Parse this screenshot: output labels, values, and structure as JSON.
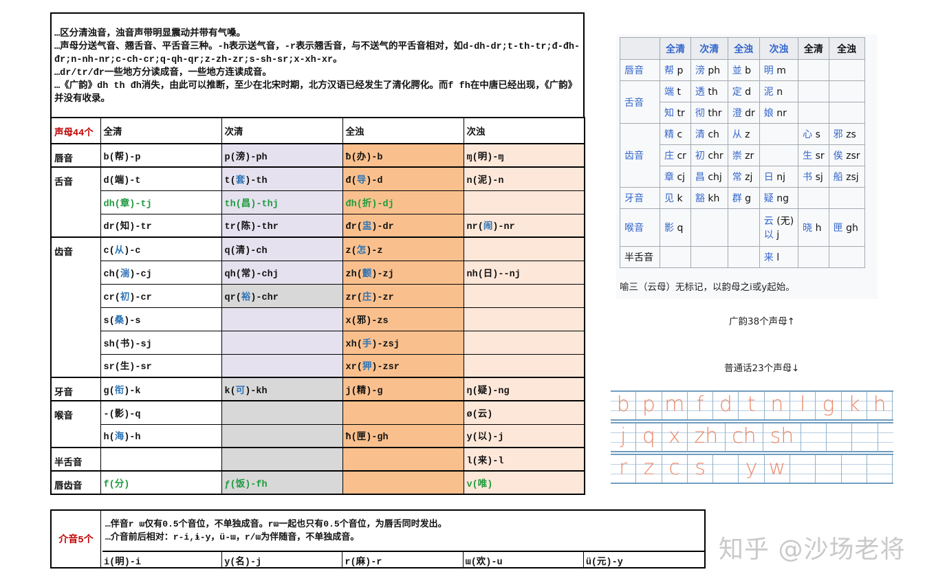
{
  "notes": [
    "…区分清浊音，浊音声带明显震动并带有气嗓。",
    "…声母分送气音、翘舌音、平舌音三种。-h表示送气音，-r表示翘舌音，与不送气的平舌音相对，如d-dh-dr;t-th-tr;đ-đh-đr;n-nh-nr;c-ch-cr;q-qh-qr;z-zh-zr;s-sh-sr;x-xh-xr。",
    "…dr/tr/đr一些地方分读成音，一些地方连读成音。",
    "…《广韵》dh th đh消失，由此可以推断，至少在北宋时期，北方汉语已经发生了清化腭化。而f fh在中唐已经出现，《广韵》并没有收录。"
  ],
  "main": {
    "title": "声母44个",
    "headers": [
      "全清",
      "次清",
      "全浊",
      "次浊"
    ],
    "groups": [
      {
        "label": "唇音",
        "rows": [
          [
            {
              "t": "b(帮)-p"
            },
            {
              "t": "p(滂)-ph"
            },
            {
              "t": "ƀ(办)-b"
            },
            {
              "t": "ɱ(明)-ɱ"
            }
          ]
        ]
      },
      {
        "label": "舌音",
        "rows": [
          [
            {
              "t": "d(端)-t"
            },
            {
              "t": "t(套)-th",
              "h": "套"
            },
            {
              "t": "đ(导)-d",
              "h": "导"
            },
            {
              "t": "n(泥)-n"
            }
          ],
          [
            {
              "t": "dh(章)-tj",
              "g": true
            },
            {
              "t": "th(昌)-thj",
              "g": true
            },
            {
              "t": "đh(折)-dj",
              "g": true
            },
            {
              "t": ""
            }
          ],
          [
            {
              "t": "dr(知)-tr"
            },
            {
              "t": "tr(陈)-thr"
            },
            {
              "t": "đr(盅)-dr",
              "h": "盅"
            },
            {
              "t": "nr(闹)-nr",
              "h": "闹"
            }
          ]
        ]
      },
      {
        "label": "齿音",
        "rows": [
          [
            {
              "t": "c(从)-c",
              "h": "从"
            },
            {
              "t": "q(清)-ch"
            },
            {
              "t": "z(怎)-z",
              "h": "怎"
            },
            {
              "t": ""
            }
          ],
          [
            {
              "t": "ch(湍)-cj",
              "h": "湍"
            },
            {
              "t": "qh(常)-chj"
            },
            {
              "t": "zh(颤)-zj",
              "h": "颤"
            },
            {
              "t": "nh(日)--nj"
            }
          ],
          [
            {
              "t": "cr(初)-cr",
              "h": "初"
            },
            {
              "t": "qr(裕)-chr",
              "h": "裕"
            },
            {
              "t": "zr(庄)-zr",
              "h": "庄"
            },
            {
              "t": ""
            }
          ],
          [
            {
              "t": "s(桑)-s",
              "h": "桑"
            },
            {
              "t": ""
            },
            {
              "t": "x(邪)-zs"
            },
            {
              "t": ""
            }
          ],
          [
            {
              "t": "sh(书)-sj"
            },
            {
              "t": ""
            },
            {
              "t": "xh(手)-zsj",
              "h": "手"
            },
            {
              "t": ""
            }
          ],
          [
            {
              "t": "sr(生)-sr"
            },
            {
              "t": ""
            },
            {
              "t": "xr(狎)-zsr",
              "h": "狎"
            },
            {
              "t": ""
            }
          ]
        ]
      },
      {
        "label": "牙音",
        "rows": [
          [
            {
              "t": "g(衔)-k",
              "h": "衔"
            },
            {
              "t": "k(可)-kh",
              "h": "可"
            },
            {
              "t": "j(精)-g"
            },
            {
              "t": "ŋ(疑)-ng"
            }
          ]
        ]
      },
      {
        "label": "喉音",
        "rows": [
          [
            {
              "t": "-(影)-q"
            },
            {
              "t": ""
            },
            {
              "t": ""
            },
            {
              "t": "ø(云)"
            }
          ],
          [
            {
              "t": "h(海)-h",
              "h": "海"
            },
            {
              "t": ""
            },
            {
              "t": "ħ(匣)-gh"
            },
            {
              "t": "y(以)-j"
            }
          ]
        ]
      },
      {
        "label": "半舌音",
        "rows": [
          [
            {
              "t": ""
            },
            {
              "t": ""
            },
            {
              "t": ""
            },
            {
              "t": "l(来)-l"
            }
          ]
        ]
      },
      {
        "label": "唇齿音",
        "rows": [
          [
            {
              "t": "f(分)",
              "g": true
            },
            {
              "t": "ƒ(饭)-fh",
              "g": true
            },
            {
              "t": ""
            },
            {
              "t": "v(唯)",
              "g": true
            }
          ]
        ]
      }
    ],
    "col2_bg": [
      "L",
      "L",
      "L",
      "L",
      "L",
      "L",
      "G",
      "L",
      "L",
      "L",
      "G",
      "G",
      "G",
      "G",
      "G"
    ]
  },
  "intermediate": {
    "label": "介音5个",
    "notes": [
      "…伴音r ɯ仅有0.5个音位，不单独成音。rɯ一起也只有0.5个音位，为唇舌同时发出。",
      "…介音前后相对：r-i,ɨ-y，ü-ɯ，r/ɯ为伴随音，不单独成音。"
    ],
    "items": [
      "i(明)-i",
      "y(名)-j",
      "r(麻)-r",
      "ɯ(欢)-u",
      "ü(元)-y"
    ]
  },
  "guangyun": {
    "headers": [
      "",
      "全清",
      "次清",
      "全浊",
      "次浊",
      "全清",
      "全浊"
    ],
    "rows": [
      {
        "label": "唇音",
        "cells": [
          [
            "帮",
            "p"
          ],
          [
            "滂",
            "ph"
          ],
          [
            "並",
            "b"
          ],
          [
            "明",
            "m"
          ],
          [
            "",
            ""
          ],
          [
            "",
            ""
          ]
        ]
      },
      {
        "label": "舌音",
        "span": 2,
        "cells": [
          [
            "端",
            "t"
          ],
          [
            "透",
            "th"
          ],
          [
            "定",
            "d"
          ],
          [
            "泥",
            "n"
          ],
          [
            "",
            ""
          ],
          [
            "",
            ""
          ]
        ]
      },
      {
        "cells": [
          [
            "知",
            "tr"
          ],
          [
            "彻",
            "thr"
          ],
          [
            "澄",
            "dr"
          ],
          [
            "娘",
            "nr"
          ],
          [
            "",
            ""
          ],
          [
            "",
            ""
          ]
        ]
      },
      {
        "label": "齿音",
        "span": 3,
        "cells": [
          [
            "精",
            "c"
          ],
          [
            "清",
            "ch"
          ],
          [
            "从",
            "z"
          ],
          [
            "",
            ""
          ],
          [
            "心",
            "s"
          ],
          [
            "邪",
            "zs"
          ]
        ]
      },
      {
        "cells": [
          [
            "庄",
            "cr"
          ],
          [
            "初",
            "chr"
          ],
          [
            "崇",
            "zr"
          ],
          [
            "",
            ""
          ],
          [
            "生",
            "sr"
          ],
          [
            "俟",
            "zsr"
          ]
        ]
      },
      {
        "cells": [
          [
            "章",
            "cj"
          ],
          [
            "昌",
            "chj"
          ],
          [
            "常",
            "zj"
          ],
          [
            "日",
            "nj"
          ],
          [
            "书",
            "sj"
          ],
          [
            "船",
            "zsj"
          ]
        ]
      },
      {
        "label": "牙音",
        "cells": [
          [
            "见",
            "k"
          ],
          [
            "豁",
            "kh"
          ],
          [
            "群",
            "g"
          ],
          [
            "疑",
            "ng"
          ],
          [
            "",
            ""
          ],
          [
            "",
            ""
          ]
        ]
      },
      {
        "label": "喉音",
        "tall": true,
        "cells": [
          [
            "影",
            "q"
          ],
          [
            "",
            ""
          ],
          [
            "",
            ""
          ],
          [
            "云",
            "(无)|以|j"
          ],
          [
            "晓",
            "h"
          ],
          [
            "匣",
            "gh"
          ]
        ]
      },
      {
        "label": "半舌音",
        "plain": true,
        "cells": [
          [
            "",
            ""
          ],
          [
            "",
            ""
          ],
          [
            "",
            ""
          ],
          [
            "来",
            "l"
          ],
          [
            "",
            ""
          ],
          [
            "",
            ""
          ]
        ]
      }
    ],
    "caption": "喻三（云母）无标记，以韵母之i或y起始。",
    "count_label": "广韵38个声母↑"
  },
  "mandarin": {
    "count_label": "普通话23个声母↓",
    "rows": [
      [
        "b",
        "p",
        "m",
        "f",
        "d",
        "t",
        "n",
        "l",
        "g",
        "k",
        "h"
      ],
      [
        "j",
        "q",
        "x",
        "zh",
        "ch",
        "sh",
        "",
        "",
        ""
      ],
      [
        "r",
        "z",
        "c",
        "s",
        "",
        "y",
        "w",
        "",
        "",
        "",
        ""
      ]
    ]
  },
  "watermark": "知乎 @沙场老将",
  "colors": {
    "red": "#c00000",
    "blue": "#2e75b6",
    "green": "#1e9a3c",
    "lavender": "#e5e1ef",
    "gray": "#d8d8d8",
    "orange": "#f9c08e",
    "peach": "#fde7d9",
    "pinyin": "#ec8a6b"
  }
}
